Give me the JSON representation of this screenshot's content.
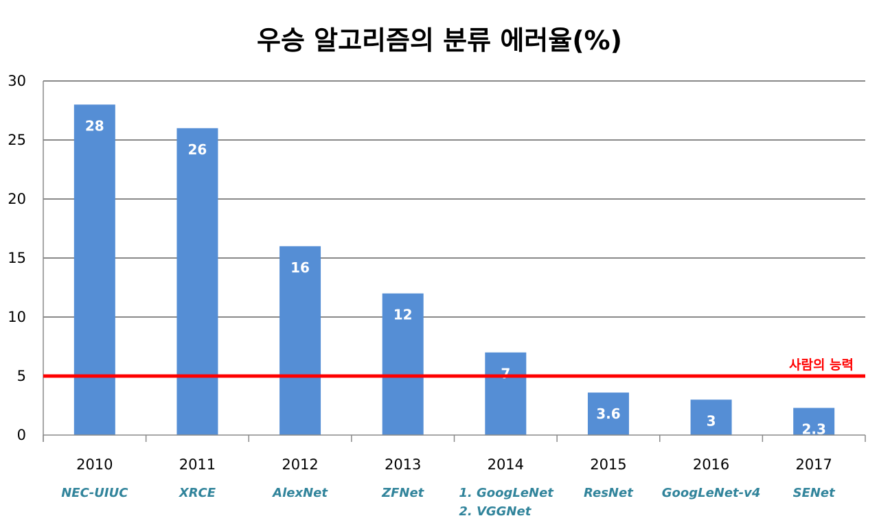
{
  "chart_data": {
    "type": "bar",
    "title": "우승 알고리즘의 분류 에러율(%)",
    "categories": [
      "2010",
      "2011",
      "2012",
      "2013",
      "2014",
      "2015",
      "2016",
      "2017"
    ],
    "algorithms": [
      [
        "NEC-UIUC"
      ],
      [
        "XRCE"
      ],
      [
        "AlexNet"
      ],
      [
        "ZFNet"
      ],
      [
        "1. GoogLeNet",
        "2. VGGNet"
      ],
      [
        "ResNet"
      ],
      [
        "GoogLeNet-v4"
      ],
      [
        "SENet"
      ]
    ],
    "values": [
      28,
      26,
      16,
      12,
      7,
      3.6,
      3,
      2.3
    ],
    "data_labels": [
      "28",
      "26",
      "16",
      "12",
      "7",
      "3.6",
      "3",
      "2.3"
    ],
    "ylim": [
      0,
      30
    ],
    "yticks": [
      0,
      5,
      10,
      15,
      20,
      25,
      30
    ],
    "grid": true,
    "reference_line": {
      "value": 5,
      "label": "사람의 능력",
      "color": "#ff0000"
    },
    "colors": {
      "bar": "#558ED5",
      "gridline": "#888888",
      "algorithm_text": "#31849B",
      "bar_label": "#ffffff"
    }
  }
}
